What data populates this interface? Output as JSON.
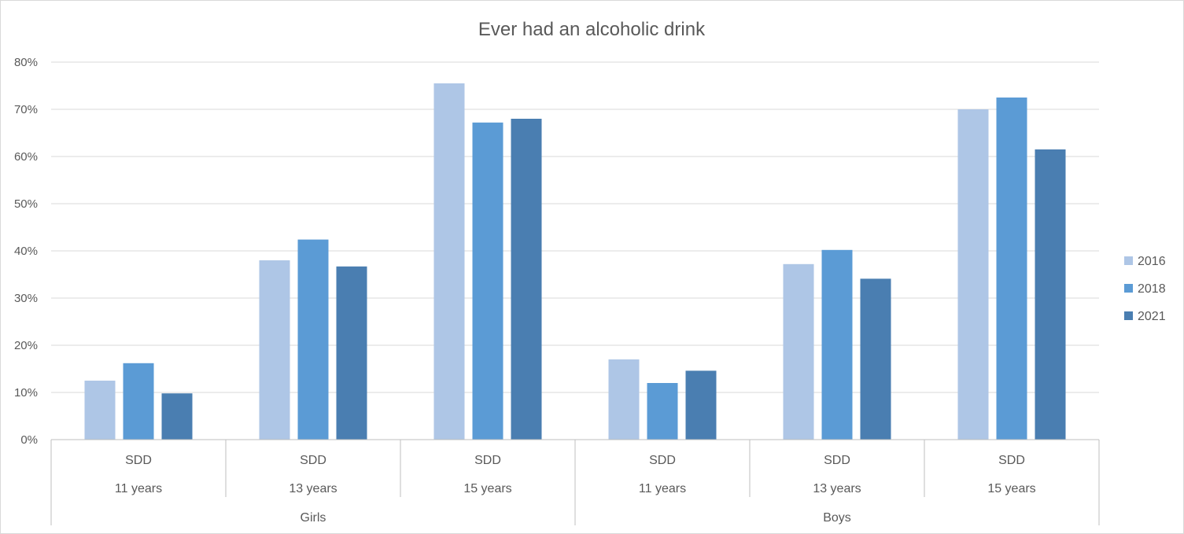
{
  "chart_data": {
    "type": "bar",
    "title": "Ever had an alcoholic drink",
    "xlabel": "",
    "ylabel": "",
    "ylim": [
      0,
      0.8
    ],
    "yticks": [
      0,
      0.1,
      0.2,
      0.3,
      0.4,
      0.5,
      0.6,
      0.7,
      0.8
    ],
    "ytick_labels": [
      "0%",
      "10%",
      "20%",
      "30%",
      "40%",
      "50%",
      "60%",
      "70%",
      "80%"
    ],
    "grid": true,
    "legend_position": "right",
    "categories": [
      {
        "level1": "SDD",
        "level2": "11 years",
        "level3": "Girls"
      },
      {
        "level1": "SDD",
        "level2": "13 years",
        "level3": "Girls"
      },
      {
        "level1": "SDD",
        "level2": "15 years",
        "level3": "Girls"
      },
      {
        "level1": "SDD",
        "level2": "11 years",
        "level3": "Boys"
      },
      {
        "level1": "SDD",
        "level2": "13 years",
        "level3": "Boys"
      },
      {
        "level1": "SDD",
        "level2": "15 years",
        "level3": "Boys"
      }
    ],
    "groups": [
      "Girls",
      "Boys"
    ],
    "series": [
      {
        "name": "2016",
        "color": "#aec6e6",
        "values": [
          0.125,
          0.38,
          0.755,
          0.17,
          0.372,
          0.7
        ]
      },
      {
        "name": "2018",
        "color": "#5b9bd5",
        "values": [
          0.162,
          0.424,
          0.672,
          0.12,
          0.402,
          0.725
        ]
      },
      {
        "name": "2021",
        "color": "#4a7eb1",
        "values": [
          0.098,
          0.367,
          0.68,
          0.146,
          0.341,
          0.615
        ]
      }
    ]
  }
}
